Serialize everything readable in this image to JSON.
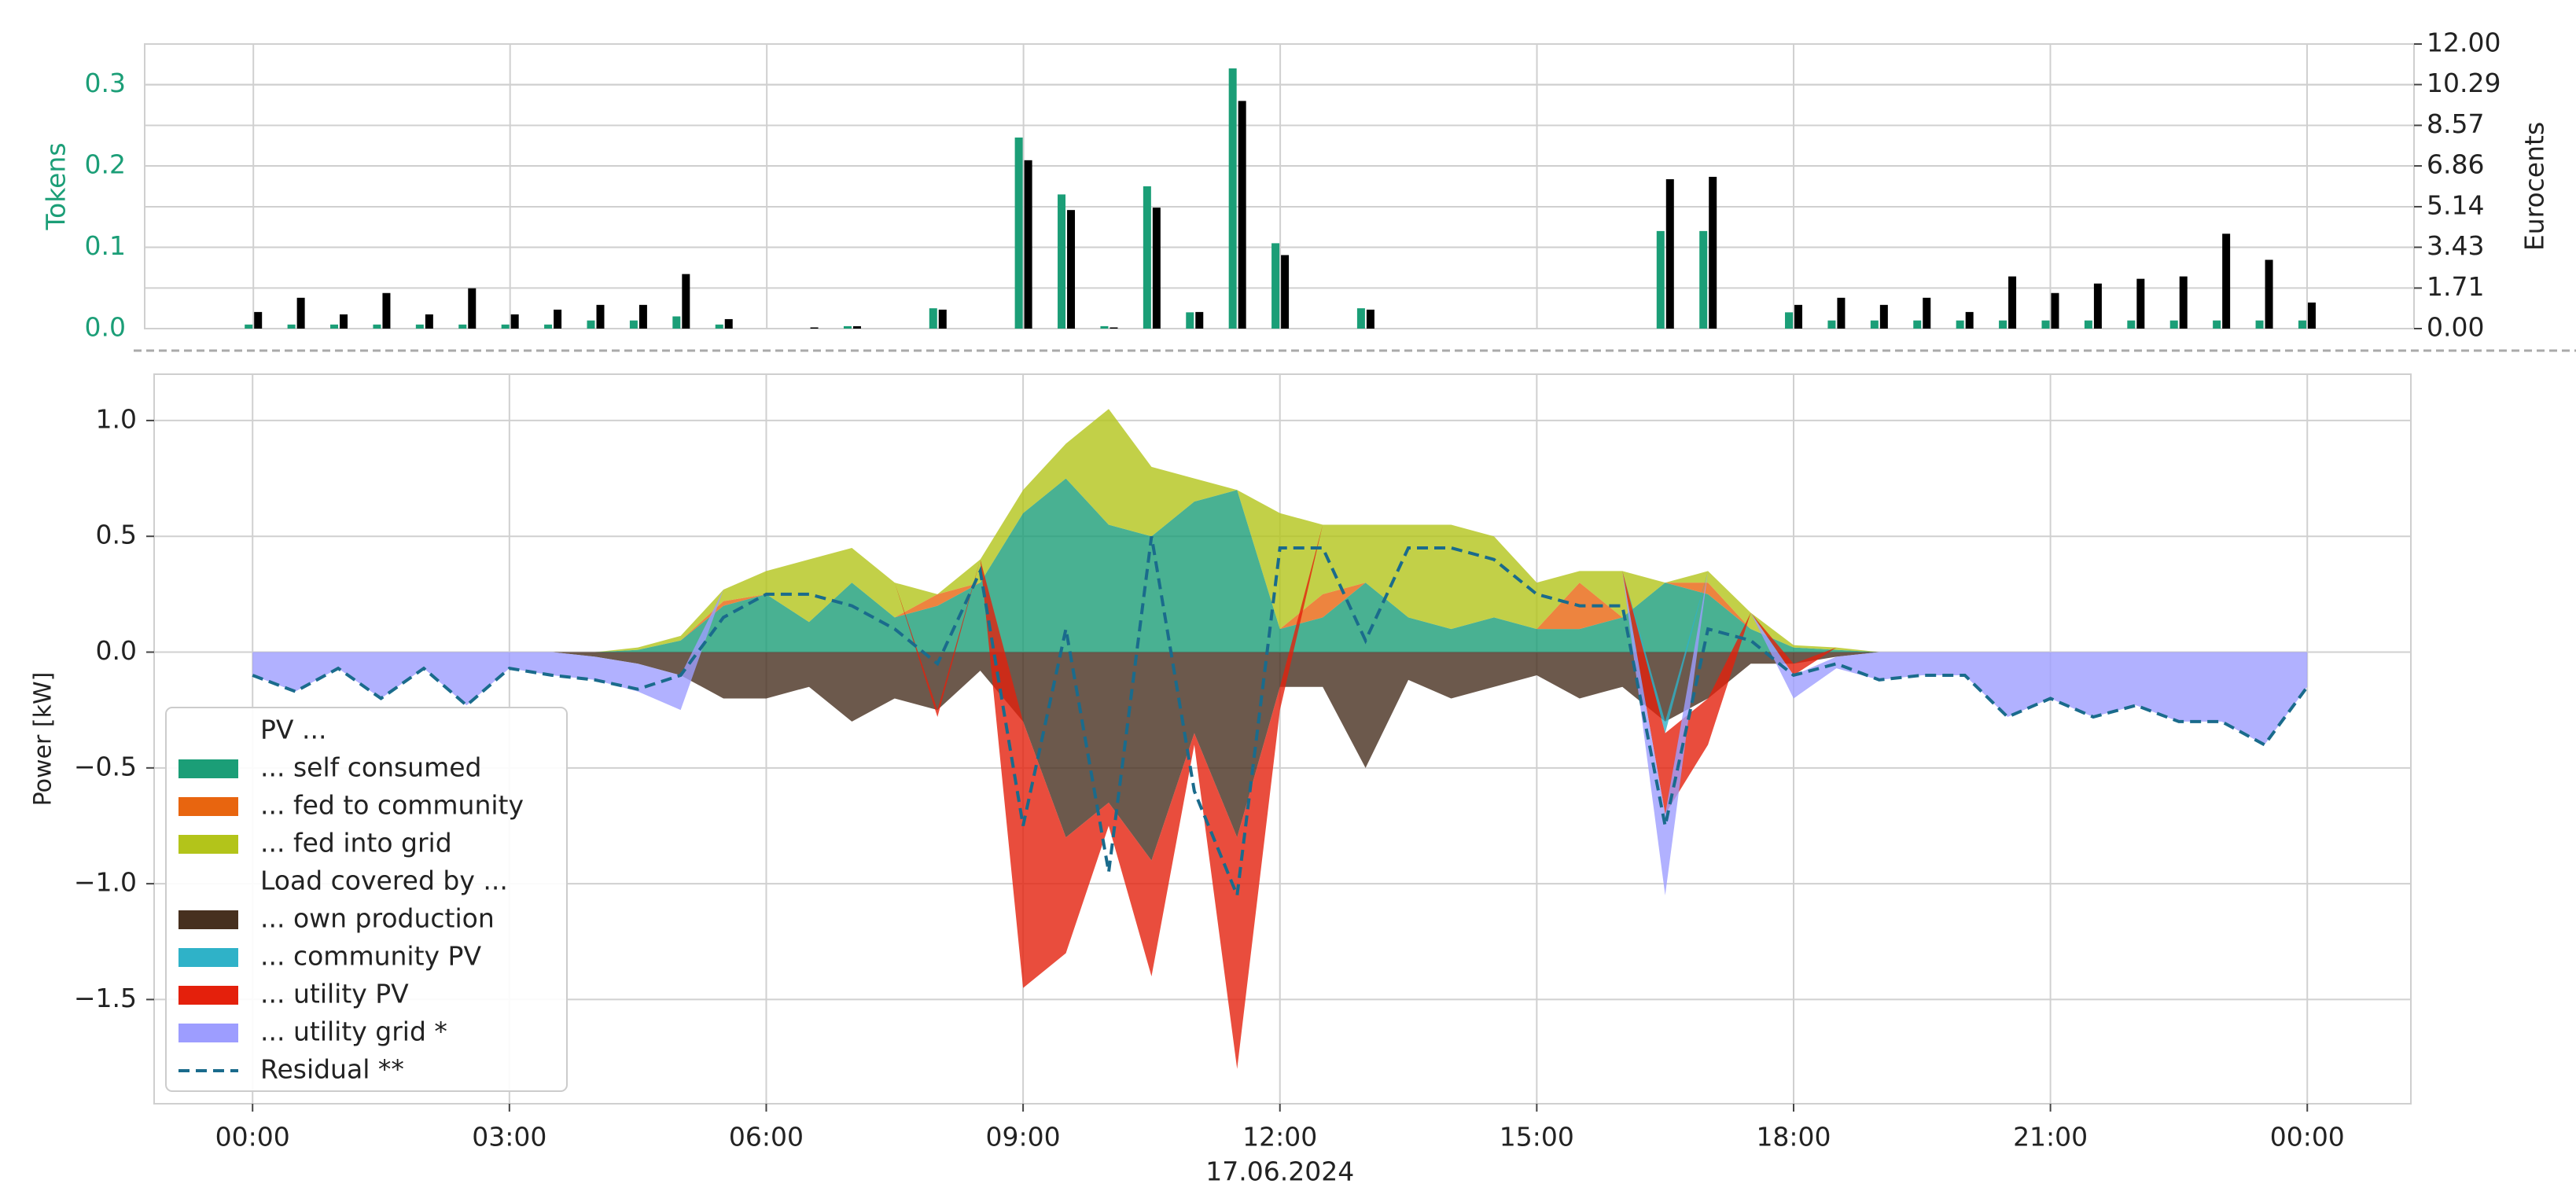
{
  "chart_data": [
    {
      "type": "bar",
      "ylabel": "Tokens",
      "y2label": "Eurocents",
      "ylabel_color": "#1b9e77",
      "x": [
        0,
        0.5,
        1,
        1.5,
        2,
        2.5,
        3,
        3.5,
        4,
        4.5,
        5,
        5.5,
        6,
        6.5,
        7,
        7.5,
        8,
        8.5,
        9,
        9.5,
        10,
        10.5,
        11,
        11.5,
        12,
        12.5,
        13,
        13.5,
        14,
        14.5,
        15,
        15.5,
        16,
        16.5,
        17,
        17.5,
        18,
        18.5,
        19,
        19.5,
        20,
        20.5,
        21,
        21.5,
        22,
        22.5,
        23,
        23.5,
        24
      ],
      "xlim": [
        -1.27,
        25.25
      ],
      "ylim": [
        0,
        0.35
      ],
      "yticks": [
        {
          "value": 0,
          "label": "0.0"
        },
        0.1,
        0.2,
        0.3
      ],
      "y2lim": [
        0,
        12
      ],
      "y2ticks": [
        {
          "value": 0,
          "label": "0.00"
        },
        1.71,
        3.43,
        5.14,
        6.86,
        8.57,
        10.29,
        {
          "value": 12,
          "label": "12.00"
        }
      ],
      "grid": true,
      "series": [
        {
          "color": "#1b9e77",
          "values": [
            0.005,
            0.005,
            0.005,
            0.005,
            0.005,
            0.005,
            0.005,
            0.005,
            0.01,
            0.01,
            0.015,
            0.005,
            0,
            0,
            0.003,
            0,
            0.025,
            0,
            0.235,
            0.165,
            0.003,
            0.175,
            0.02,
            0.32,
            0.105,
            0,
            0.025,
            0,
            0,
            0,
            0,
            0,
            0,
            0.12,
            0.12,
            0,
            0.02,
            0.01,
            0.01,
            0.01,
            0.01,
            0.01,
            0.01,
            0.01,
            0.01,
            0.01,
            0.01,
            0.01,
            0.01
          ]
        },
        {
          "color": "#000000",
          "axis": "y2",
          "values": [
            0.7,
            1.3,
            0.6,
            1.5,
            0.6,
            1.7,
            0.6,
            0.8,
            1.0,
            1.0,
            2.3,
            0.4,
            0,
            0.05,
            0.1,
            0,
            0.8,
            0,
            7.1,
            5.0,
            0.05,
            5.1,
            0.7,
            9.6,
            3.1,
            0,
            0.8,
            0,
            0,
            0,
            0,
            0,
            0,
            6.3,
            6.4,
            0,
            1.0,
            1.3,
            1.0,
            1.3,
            0.7,
            2.2,
            1.5,
            1.9,
            2.1,
            2.2,
            4.0,
            2.9,
            1.1
          ]
        }
      ]
    },
    {
      "type": "area",
      "ylabel": "Power [kW]",
      "xlabel": "17.06.2024",
      "stacked": true,
      "alpha": 0.8,
      "x": [
        0,
        0.5,
        1,
        1.5,
        2,
        2.5,
        3,
        3.5,
        4,
        4.5,
        5,
        5.5,
        6,
        6.5,
        7,
        7.5,
        8,
        8.5,
        9,
        9.5,
        10,
        10.5,
        11,
        11.5,
        12,
        12.5,
        13,
        13.5,
        14,
        14.5,
        15,
        15.5,
        16,
        16.5,
        17,
        17.5,
        18,
        18.5,
        19,
        19.5,
        20,
        20.5,
        21,
        21.5,
        22,
        22.5,
        23,
        23.5,
        24
      ],
      "xlim": [
        -1.15,
        25.21
      ],
      "xticks": [
        {
          "value": 0,
          "label": "00:00"
        },
        {
          "value": 3,
          "label": "03:00"
        },
        {
          "value": 6,
          "label": "06:00"
        },
        {
          "value": 9,
          "label": "09:00"
        },
        {
          "value": 12,
          "label": "12:00"
        },
        {
          "value": 15,
          "label": "15:00"
        },
        {
          "value": 18,
          "label": "18:00"
        },
        {
          "value": 21,
          "label": "21:00"
        },
        {
          "value": 24,
          "label": "00:00"
        }
      ],
      "ylim": [
        -1.95,
        1.2
      ],
      "yticks": [
        {
          "value": -1.5,
          "label": "−1.5"
        },
        {
          "value": -1,
          "label": "−1.0"
        },
        {
          "value": -0.5,
          "label": "−0.5"
        },
        {
          "value": 0,
          "label": "0.0"
        },
        0.5,
        {
          "value": 1,
          "label": "1.0"
        }
      ],
      "grid": true,
      "legend": "lower left",
      "groups": [
        {
          "title": "PV ...",
          "series": [
            {
              "name": "... self consumed",
              "color": "#1b9e77",
              "values": [
                0,
                0,
                0,
                0,
                0,
                0,
                0,
                0,
                0,
                0.01,
                0.05,
                0.2,
                0.25,
                0.13,
                0.3,
                0.15,
                0.2,
                0.3,
                0.6,
                0.75,
                0.55,
                0.5,
                0.65,
                0.7,
                0.1,
                0.15,
                0.3,
                0.15,
                0.1,
                0.15,
                0.1,
                0.1,
                0.15,
                0.3,
                0.25,
                0.1,
                0.02,
                0.01,
                0,
                0,
                0,
                0,
                0,
                0,
                0,
                0,
                0,
                0,
                0
              ]
            },
            {
              "name": "... fed to community",
              "color": "#e8650f",
              "values": [
                0,
                0,
                0,
                0,
                0,
                0,
                0,
                0,
                0,
                0,
                0,
                0.02,
                0,
                0,
                0,
                0,
                0.05,
                0,
                0,
                0,
                0,
                0,
                0,
                0,
                0,
                0.1,
                0,
                0,
                0,
                0,
                0,
                0.2,
                0,
                0,
                0.05,
                0,
                0,
                0,
                0,
                0,
                0,
                0,
                0,
                0,
                0,
                0,
                0,
                0,
                0
              ]
            },
            {
              "name": "... fed into grid",
              "color": "#b3c41a",
              "values": [
                0,
                0,
                0,
                0,
                0,
                0,
                0,
                0,
                0,
                0.01,
                0.02,
                0.05,
                0.1,
                0.27,
                0.15,
                0.15,
                0,
                0.1,
                0.1,
                0.15,
                0.5,
                0.3,
                0.1,
                0,
                0.5,
                0.3,
                0.25,
                0.4,
                0.45,
                0.35,
                0.2,
                0.05,
                0.2,
                0,
                0.05,
                0.07,
                0.01,
                0.01,
                0,
                0,
                0,
                0,
                0,
                0,
                0,
                0,
                0,
                0,
                0
              ]
            }
          ]
        },
        {
          "title": "Load covered by ...",
          "series": [
            {
              "name": "... own production",
              "color": "#47301f",
              "values": [
                0,
                0,
                0,
                0,
                0,
                0,
                0,
                0,
                -0.02,
                -0.05,
                -0.1,
                -0.2,
                -0.2,
                -0.15,
                -0.3,
                -0.2,
                -0.25,
                -0.08,
                -0.3,
                -0.8,
                -0.65,
                -0.9,
                -0.35,
                -0.8,
                -0.15,
                -0.15,
                -0.5,
                -0.12,
                -0.2,
                -0.15,
                -0.1,
                -0.2,
                -0.15,
                -0.3,
                -0.2,
                -0.05,
                -0.05,
                -0.02,
                0,
                0,
                0,
                0,
                0,
                0,
                0,
                0,
                0,
                0,
                0
              ]
            },
            {
              "name": "... community PV",
              "color": "#2fb2c8",
              "values": [
                0,
                0,
                0,
                0,
                0,
                0,
                0,
                0,
                0,
                0,
                0,
                0,
                0,
                0,
                0,
                0,
                0,
                0,
                0,
                0,
                0,
                0,
                0,
                0,
                0,
                0,
                0,
                0,
                0,
                0,
                0,
                0,
                0,
                -0.05,
                0,
                0,
                0,
                0,
                0,
                0,
                0,
                0,
                0,
                0,
                0,
                0,
                0,
                0,
                0
              ]
            },
            {
              "name": "... utility PV",
              "color": "#e4200c",
              "values": [
                0,
                0,
                0,
                0,
                0,
                0,
                0,
                0,
                0,
                0,
                0,
                0,
                0,
                0,
                0,
                0,
                -0.03,
                0,
                -1.15,
                -0.5,
                -0.1,
                -0.5,
                -0.05,
                -1.0,
                -0.1,
                0,
                0,
                0,
                0,
                0,
                0,
                0,
                0,
                -0.35,
                -0.2,
                0,
                -0.05,
                0,
                0,
                0,
                0,
                0,
                0,
                0,
                0,
                0,
                0,
                0,
                0
              ]
            },
            {
              "name": "... utility grid *",
              "color": "#9d9dff",
              "values": [
                -0.1,
                -0.17,
                -0.07,
                -0.2,
                -0.07,
                -0.23,
                -0.07,
                -0.1,
                -0.1,
                -0.12,
                -0.15,
                0,
                0,
                0,
                0,
                0,
                0,
                0,
                0,
                0,
                0,
                0,
                0,
                0,
                0,
                0,
                0,
                0,
                0,
                0,
                0,
                0,
                0,
                -0.35,
                0,
                0,
                -0.1,
                -0.05,
                -0.12,
                -0.1,
                -0.1,
                -0.28,
                -0.2,
                -0.28,
                -0.23,
                -0.3,
                -0.3,
                -0.4,
                -0.15
              ]
            }
          ]
        }
      ],
      "series": [
        {
          "name": "Residual **",
          "color": "#1a6b8c",
          "style": "dashed",
          "values": [
            -0.1,
            -0.17,
            -0.07,
            -0.2,
            -0.07,
            -0.23,
            -0.07,
            -0.1,
            -0.12,
            -0.16,
            -0.1,
            0.15,
            0.25,
            0.25,
            0.2,
            0.1,
            -0.05,
            0.35,
            -0.75,
            0.1,
            -0.95,
            0.5,
            -0.6,
            -1.05,
            0.45,
            0.45,
            0.05,
            0.45,
            0.45,
            0.4,
            0.25,
            0.2,
            0.2,
            -0.75,
            0.1,
            0.05,
            -0.1,
            -0.05,
            -0.12,
            -0.1,
            -0.1,
            -0.28,
            -0.2,
            -0.28,
            -0.23,
            -0.3,
            -0.3,
            -0.4,
            -0.15
          ]
        }
      ]
    }
  ]
}
